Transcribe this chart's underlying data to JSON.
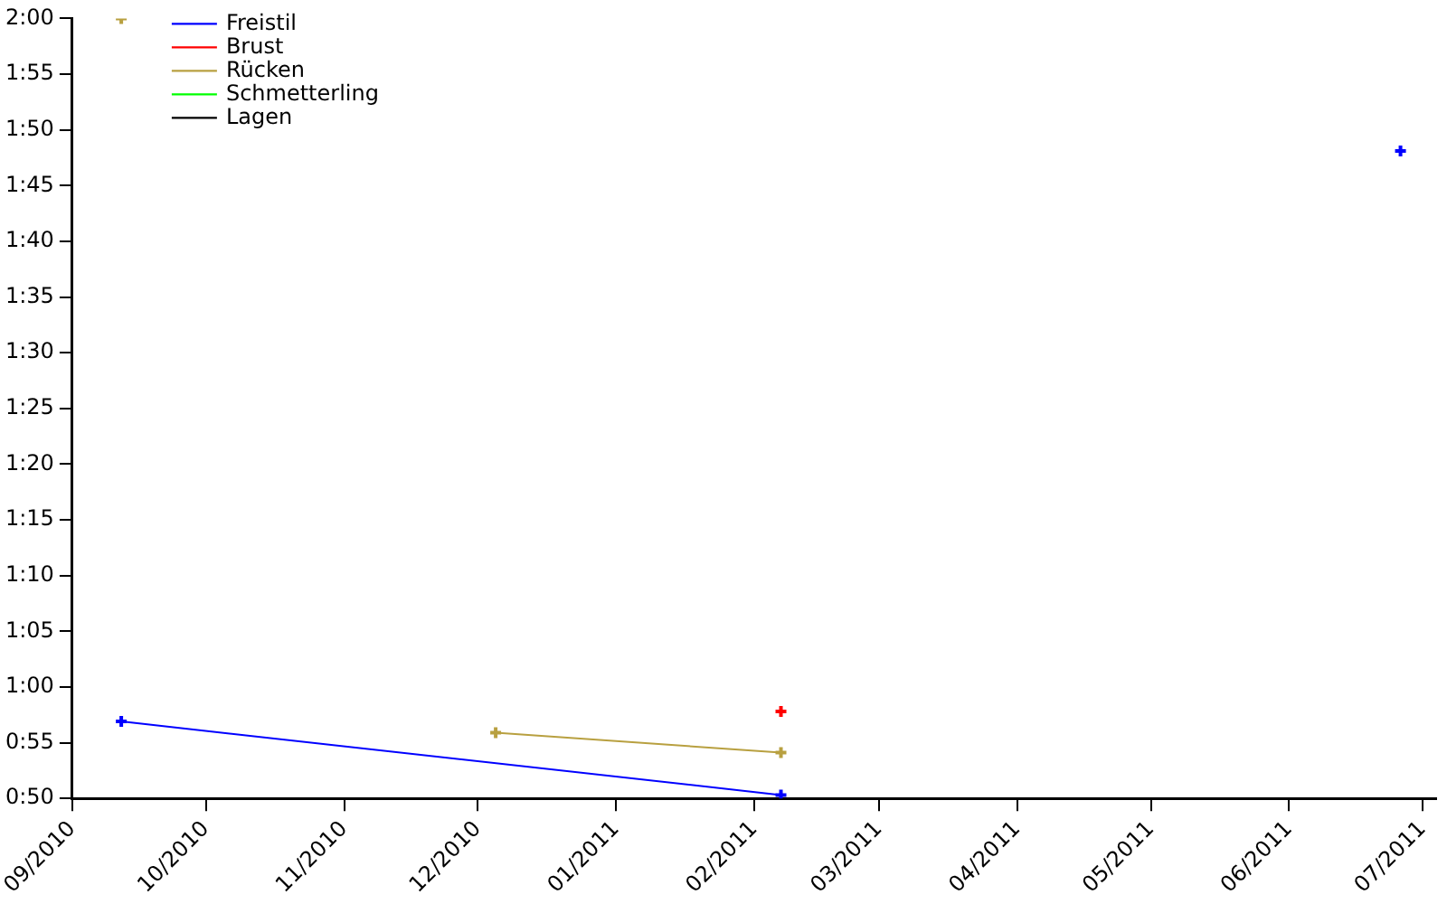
{
  "chart_data": {
    "type": "line",
    "x": [
      "2010-09-12",
      "2011-02-07",
      "2011-04-15",
      "2011-06-26"
    ],
    "xlim": [
      "2010-09-01",
      "2011-07-04"
    ],
    "xticks": [
      {
        "value": "2010-09-01",
        "label": "09/2010"
      },
      {
        "value": "2010-10-01",
        "label": "10/2010"
      },
      {
        "value": "2010-11-01",
        "label": "11/2010"
      },
      {
        "value": "2010-12-01",
        "label": "12/2010"
      },
      {
        "value": "2011-01-01",
        "label": "01/2011"
      },
      {
        "value": "2011-02-01",
        "label": "02/2011"
      },
      {
        "value": "2011-03-01",
        "label": "03/2011"
      },
      {
        "value": "2011-04-01",
        "label": "04/2011"
      },
      {
        "value": "2011-05-01",
        "label": "05/2011"
      },
      {
        "value": "2011-06-01",
        "label": "06/2011"
      },
      {
        "value": "2011-07-01",
        "label": "07/2011"
      }
    ],
    "ylim": [
      50,
      120
    ],
    "yticks": [
      {
        "value": 50,
        "label": "0:50"
      },
      {
        "value": 55,
        "label": "0:55"
      },
      {
        "value": 60,
        "label": "1:00"
      },
      {
        "value": 65,
        "label": "1:05"
      },
      {
        "value": 70,
        "label": "1:10"
      },
      {
        "value": 75,
        "label": "1:15"
      },
      {
        "value": 80,
        "label": "1:20"
      },
      {
        "value": 85,
        "label": "1:25"
      },
      {
        "value": 90,
        "label": "1:30"
      },
      {
        "value": 95,
        "label": "1:35"
      },
      {
        "value": 100,
        "label": "1:40"
      },
      {
        "value": 105,
        "label": "1:45"
      },
      {
        "value": 110,
        "label": "1:50"
      },
      {
        "value": 115,
        "label": "1:55"
      },
      {
        "value": 120,
        "label": "2:00"
      }
    ],
    "series": [
      {
        "name": "Freistil",
        "color": "#0000ff",
        "values": [
          56.9,
          50.3,
          null,
          108.1
        ]
      },
      {
        "name": "Brust",
        "color": "#ff0000",
        "x": [
          "2011-02-07"
        ],
        "values": [
          57.8
        ]
      },
      {
        "name": "Rücken",
        "color": "#b8a040",
        "x": [
          "2010-09-12",
          "2010-10-20",
          "2010-12-05",
          "2011-02-07"
        ],
        "values": [
          120,
          null,
          55.9,
          54.1
        ]
      },
      {
        "name": "Schmetterling",
        "color": "#00ff00",
        "values": [
          null,
          null,
          null,
          null
        ]
      },
      {
        "name": "Lagen",
        "color": "#000000",
        "values": [
          null,
          null,
          null,
          null
        ]
      }
    ],
    "legend": "top left",
    "grid": false,
    "marker": "cross",
    "line_style": "solid"
  }
}
